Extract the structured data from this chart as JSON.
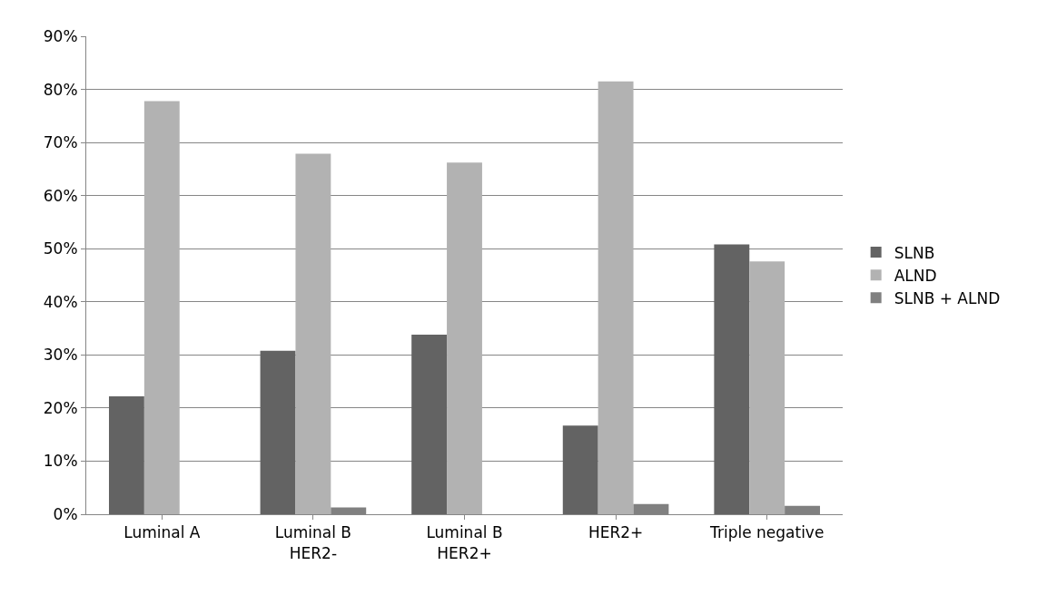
{
  "chart_data": {
    "type": "bar",
    "categories": [
      "Luminal A",
      "Luminal B\nHER2-",
      "Luminal B\nHER2+",
      "HER2+",
      "Triple negative"
    ],
    "series": [
      {
        "name": "SLNB",
        "color": "#636363",
        "values": [
          22.2,
          30.8,
          33.8,
          16.7,
          50.8
        ]
      },
      {
        "name": "ALND",
        "color": "#b2b2b2",
        "values": [
          77.8,
          67.9,
          66.2,
          81.5,
          47.6
        ]
      },
      {
        "name": "SLNB + ALND",
        "color": "#808080",
        "values": [
          0,
          1.3,
          0,
          1.9,
          1.6
        ]
      }
    ],
    "ylim": [
      0,
      90
    ],
    "yticks": [
      {
        "value": 0,
        "label": "0%"
      },
      {
        "value": 10,
        "label": "10%"
      },
      {
        "value": 20,
        "label": "20%"
      },
      {
        "value": 30,
        "label": "30%"
      },
      {
        "value": 40,
        "label": "40%"
      },
      {
        "value": 50,
        "label": "50%"
      },
      {
        "value": 60,
        "label": "60%"
      },
      {
        "value": 70,
        "label": "70%"
      },
      {
        "value": 80,
        "label": "80%"
      },
      {
        "value": 90,
        "label": "90%"
      }
    ],
    "grid": "y",
    "legend": "right"
  }
}
